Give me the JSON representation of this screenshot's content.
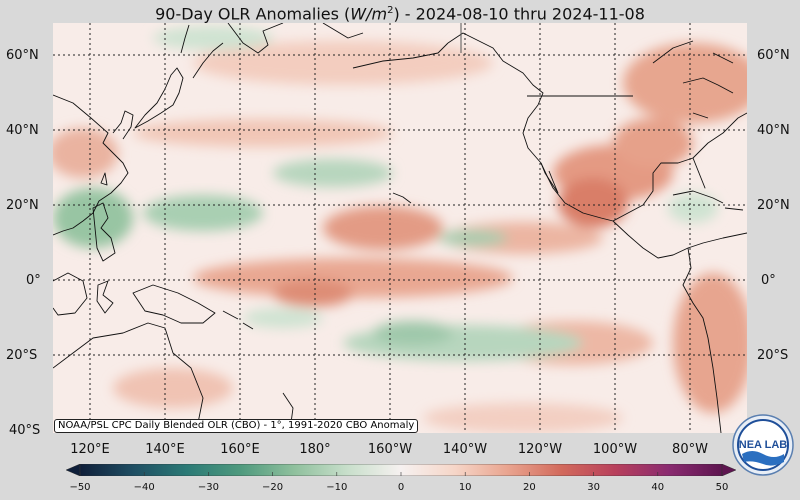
{
  "title": {
    "main_before": "90-Day OLR Anomalies (",
    "unit_base": "W/m",
    "unit_exp": "2",
    "main_after": ") - 2024-08-10 thru 2024-11-08"
  },
  "credit": "NOAA/PSL CPC Daily Blended OLR (CBO) - 1°, 1991-2020 CBO Anomaly",
  "lat_labels": [
    "60°N",
    "40°N",
    "20°N",
    "0°",
    "20°S",
    "40°S"
  ],
  "lon_labels": [
    "120°E",
    "140°E",
    "160°E",
    "180°",
    "160°W",
    "140°W",
    "120°W",
    "100°W",
    "80°W"
  ],
  "colorbar": {
    "ticks": [
      "−50",
      "−40",
      "−30",
      "−20",
      "−10",
      "0",
      "10",
      "20",
      "30",
      "40",
      "50"
    ],
    "min": -50,
    "max": 50,
    "colors": [
      "#0f1f3a",
      "#1f4e63",
      "#2b7a76",
      "#4f9a7e",
      "#8fc09d",
      "#c8dfcb",
      "#f6f1f0",
      "#f6d6c8",
      "#e9a48f",
      "#d26a5c",
      "#b8405c",
      "#8a2b70",
      "#5e1550"
    ]
  },
  "logo": {
    "text": "NEA LAB",
    "icon": "noaa-psl-logo"
  },
  "map_colors": {
    "ocean_base": "#f8ece8",
    "positive_light": "#f3cfc2",
    "positive_mid": "#e7a08b",
    "positive_strong": "#d97c64",
    "negative_light": "#cfe3d2",
    "negative_mid": "#9cc7a7",
    "coast": "#111111",
    "grid": "#222222"
  }
}
